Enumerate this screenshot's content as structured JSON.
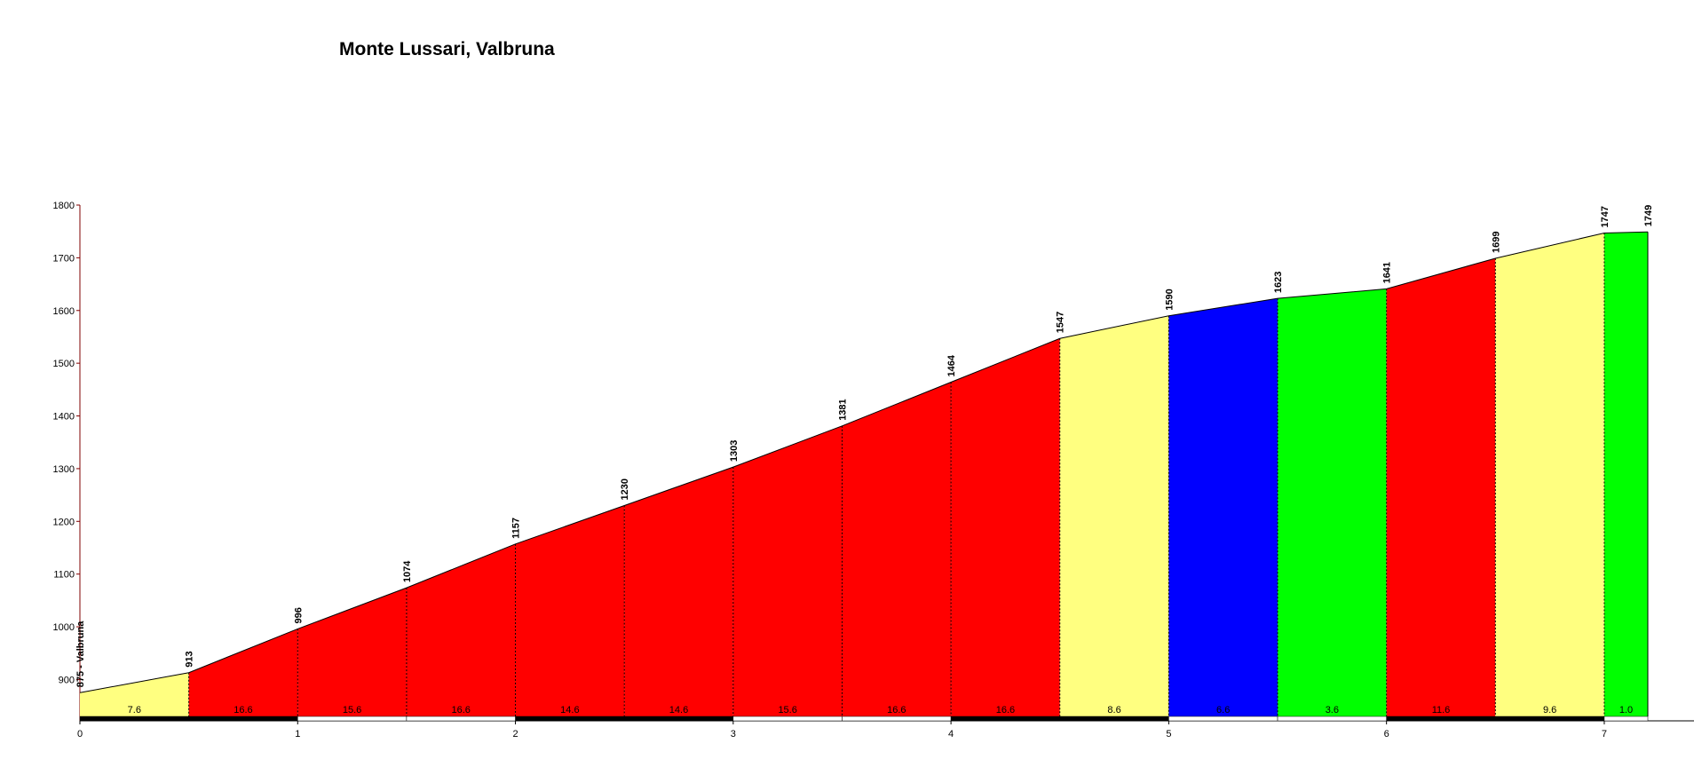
{
  "chart_data": {
    "type": "elevation-profile",
    "title": "Monte Lussari, Valbruna",
    "x": [
      0,
      0.5,
      1,
      1.5,
      2,
      2.5,
      3,
      3.5,
      4,
      4.5,
      5,
      5.5,
      6,
      6.5,
      7,
      7.2
    ],
    "values": [
      875,
      913,
      996,
      1074,
      1157,
      1230,
      1303,
      1381,
      1464,
      1547,
      1590,
      1623,
      1641,
      1699,
      1747,
      1749
    ],
    "value_labels": [
      "875 - Valbruna",
      "913",
      "996",
      "1074",
      "1157",
      "1230",
      "1303",
      "1381",
      "1464",
      "1547",
      "1590",
      "1623",
      "1641",
      "1699",
      "1747",
      "1749"
    ],
    "segments": {
      "values": [
        7.6,
        16.6,
        15.6,
        16.6,
        14.6,
        14.6,
        15.6,
        16.6,
        16.6,
        8.6,
        6.6,
        3.6,
        11.6,
        9.6,
        1.0
      ],
      "value_labels": [
        "7.6",
        "16.6",
        "15.6",
        "16.6",
        "14.6",
        "14.6",
        "15.6",
        "16.6",
        "16.6",
        "8.6",
        "6.6",
        "3.6",
        "11.6",
        "9.6",
        "1.0"
      ],
      "colors": [
        "#ffff80",
        "#ff0000",
        "#ff0000",
        "#ff0000",
        "#ff0000",
        "#ff0000",
        "#ff0000",
        "#ff0000",
        "#ff0000",
        "#ffff80",
        "#0000ff",
        "#00ff00",
        "#ff0000",
        "#ffff80",
        "#00ff00"
      ]
    },
    "xlim": [
      0,
      7.2
    ],
    "xticks": [
      0,
      1,
      2,
      3,
      4,
      5,
      6,
      7
    ],
    "ylim": [
      830,
      1800
    ],
    "yticks": [
      900,
      1000,
      1100,
      1200,
      1300,
      1400,
      1500,
      1600,
      1700,
      1800
    ]
  }
}
